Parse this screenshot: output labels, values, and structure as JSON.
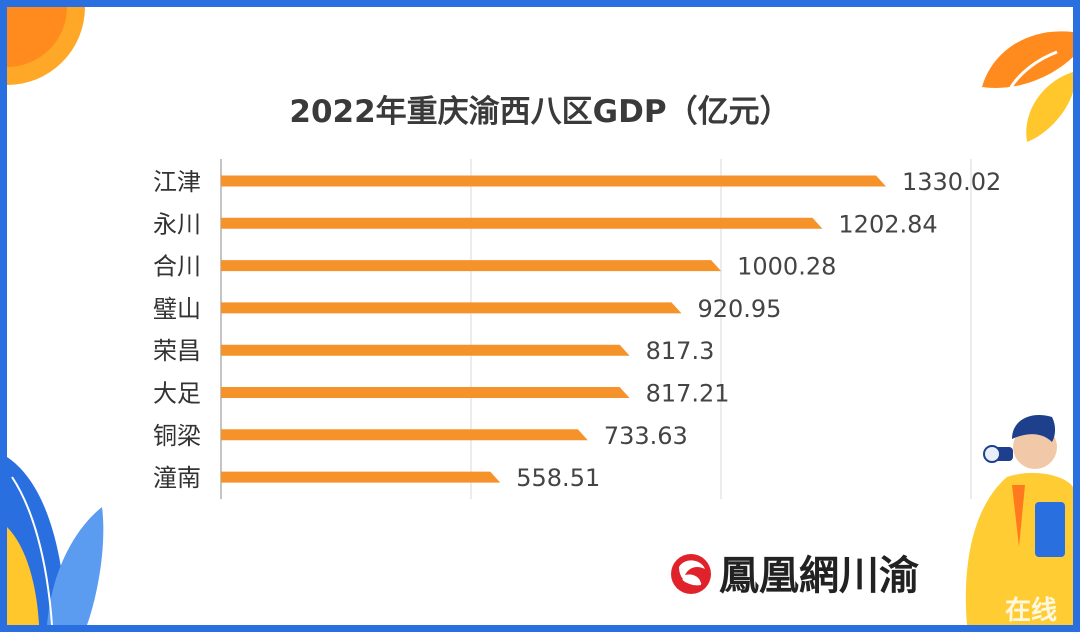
{
  "title": "2022年重庆渝西八区GDP（亿元）",
  "chart_data": {
    "type": "bar",
    "orientation": "horizontal",
    "title": "2022年重庆渝西八区GDP（亿元）",
    "categories": [
      "江津",
      "永川",
      "合川",
      "璧山",
      "荣昌",
      "大足",
      "铜梁",
      "潼南"
    ],
    "values": [
      1330.02,
      1202.84,
      1000.28,
      920.95,
      817.3,
      817.21,
      733.63,
      558.51
    ],
    "value_labels": [
      "1330.02",
      "1202.84",
      "1000.28",
      "920.95",
      "817.3",
      "817.21",
      "733.63",
      "558.51"
    ],
    "xlim": [
      0,
      1500
    ],
    "grid": true,
    "legend": "none",
    "bar_color": "#f5922a"
  },
  "brand": {
    "name": "鳳凰網川渝",
    "logo_icon": "phoenix-logo-icon"
  },
  "watermark": "在线",
  "colors": {
    "frame": "#2a6fe0",
    "bar": "#f5922a",
    "accent_orange": "#ff8a1e",
    "accent_yellow": "#ffc72c",
    "logo_red": "#e0232b"
  }
}
